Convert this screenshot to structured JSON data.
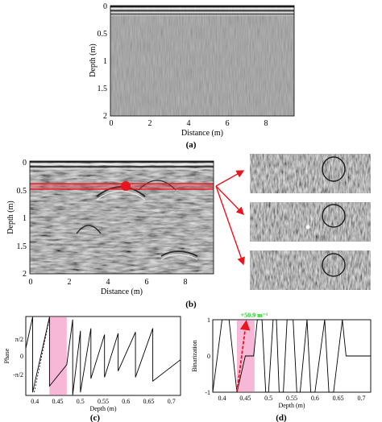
{
  "panel_a": {
    "label": "(a)",
    "xlabel": "Distance (m)",
    "ylabel": "Depth (m)",
    "xticks": [
      "0",
      "2",
      "4",
      "6",
      "8"
    ],
    "yticks": [
      "0",
      "0.5",
      "1",
      "1.5",
      "2"
    ]
  },
  "panel_b": {
    "label": "(b)",
    "xlabel": "Distance (m)",
    "ylabel": "Depth (m)",
    "xticks": [
      "0",
      "2",
      "4",
      "6",
      "8"
    ],
    "yticks": [
      "0",
      "0.5",
      "1",
      "1.5",
      "2"
    ]
  },
  "panel_c": {
    "label": "(c)",
    "xlabel": "Depth (m)",
    "ylabel": "Phase",
    "xticks": [
      "0.4",
      "0.45",
      "0.5",
      "0.55",
      "0.6",
      "0.65",
      "0.7"
    ],
    "yticks": [
      "π/2",
      "0",
      "-π/2"
    ]
  },
  "panel_d": {
    "label": "(d)",
    "xlabel": "Depth (m)",
    "ylabel": "Binarization",
    "xticks": [
      "0.4",
      "0.45",
      "0.5",
      "0.55",
      "0.6",
      "0.65",
      "0.7"
    ],
    "yticks": [
      "1",
      "0",
      "-1"
    ],
    "annotation": "+50.9 m⁻¹"
  },
  "colors": {
    "highlight": "#f7b8d8",
    "red": "#e8141e",
    "annotation_green": "#22cc22"
  },
  "chart_data": [
    {
      "type": "line",
      "title": "",
      "xlabel": "Depth (m)",
      "ylabel": "Phase",
      "xlim": [
        0.38,
        0.72
      ],
      "ylim": [
        -3.14159,
        3.14159
      ],
      "highlight_range": [
        0.432,
        0.47
      ],
      "series": [
        {
          "x": [
            0.38,
            0.395,
            0.395,
            0.432,
            0.432,
            0.47,
            0.483,
            0.483,
            0.5,
            0.5,
            0.523,
            0.523,
            0.553,
            0.553,
            0.583,
            0.583,
            0.621,
            0.621,
            0.659,
            0.659,
            0.72
          ],
          "y": [
            0.6,
            3.1,
            -2.9,
            3.1,
            -2.4,
            -0.7,
            2.9,
            -3.1,
            2.0,
            -2.9,
            2.2,
            -1.8,
            1.7,
            -1.7,
            1.8,
            -1.2,
            1.9,
            -1.7,
            2.2,
            -2.0,
            -0.3
          ]
        }
      ]
    },
    {
      "type": "line",
      "title": "",
      "xlabel": "Depth (m)",
      "ylabel": "Binarization",
      "xlim": [
        0.38,
        0.72
      ],
      "ylim": [
        -1,
        1
      ],
      "highlight_range": [
        0.432,
        0.47
      ],
      "series": [
        {
          "x": [
            0.38,
            0.39,
            0.4,
            0.415,
            0.432,
            0.45,
            0.468,
            0.476,
            0.486,
            0.494,
            0.5,
            0.51,
            0.517,
            0.523,
            0.532,
            0.54,
            0.553,
            0.561,
            0.568,
            0.583,
            0.591,
            0.6,
            0.621,
            0.63,
            0.64,
            0.659,
            0.667,
            0.72
          ],
          "y": [
            -1,
            0,
            1,
            1,
            -1,
            0,
            0,
            1,
            1,
            -1,
            -1,
            1,
            1,
            -1,
            -1,
            1,
            1,
            -1,
            -1,
            1,
            -1,
            -1,
            1,
            -1,
            -1,
            1,
            0,
            0
          ]
        }
      ]
    }
  ]
}
